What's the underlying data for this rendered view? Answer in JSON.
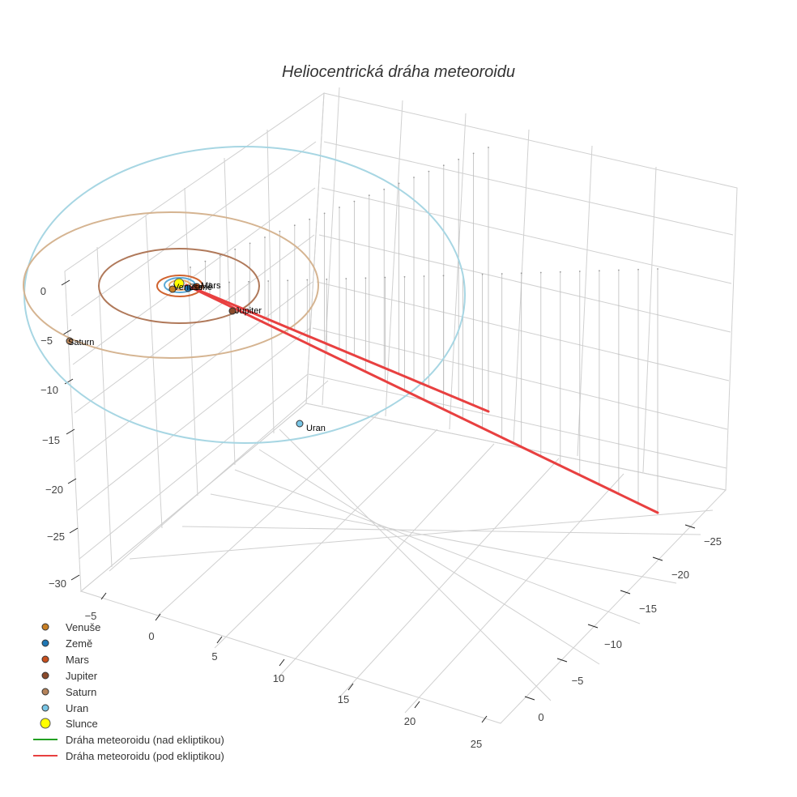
{
  "chart_data": {
    "type": "scatter3d",
    "title": "Heliocentrická dráha meteoroidu",
    "axes": {
      "z_ticks": [
        "0",
        "−5",
        "−10",
        "−15",
        "−20",
        "−25",
        "−30"
      ],
      "x_ticks": [
        "−5",
        "0",
        "5",
        "10",
        "15",
        "20",
        "25"
      ],
      "y_ticks": [
        "−25",
        "−20",
        "−15",
        "−10",
        "−5",
        "0"
      ]
    },
    "orbits": [
      {
        "name": "Venuše",
        "radius_au": 0.72,
        "color": "#e8a866"
      },
      {
        "name": "Země",
        "radius_au": 1.0,
        "color": "#5aa9d6"
      },
      {
        "name": "Mars",
        "radius_au": 1.52,
        "color": "#d0632f"
      },
      {
        "name": "Jupiter",
        "radius_au": 5.2,
        "color": "#b0795a"
      },
      {
        "name": "Saturn",
        "radius_au": 9.54,
        "color": "#d5b491"
      },
      {
        "name": "Uran",
        "radius_au": 19.2,
        "color": "#a7d6e3"
      }
    ],
    "planets": [
      {
        "name": "Venuše",
        "label": "Venuše",
        "color": "#c87f24"
      },
      {
        "name": "Země",
        "label": "Země",
        "color": "#1f77b4"
      },
      {
        "name": "Mars",
        "label": "Mars",
        "color": "#c8501e"
      },
      {
        "name": "Jupiter",
        "label": "Jupiter",
        "color": "#8b4a2b"
      },
      {
        "name": "Saturn",
        "label": "Saturn",
        "color": "#b5835a"
      },
      {
        "name": "Uran",
        "label": "Uran",
        "color": "#79c6e6"
      },
      {
        "name": "Slunce",
        "label": "",
        "color": "#ffff00"
      }
    ],
    "legend": [
      {
        "label": "Venuše",
        "kind": "marker",
        "color": "#c87f24"
      },
      {
        "label": "Země",
        "kind": "marker",
        "color": "#1f77b4"
      },
      {
        "label": "Mars",
        "kind": "marker",
        "color": "#c8501e"
      },
      {
        "label": "Jupiter",
        "kind": "marker",
        "color": "#8b4a2b"
      },
      {
        "label": "Saturn",
        "kind": "marker",
        "color": "#b5835a"
      },
      {
        "label": "Uran",
        "kind": "marker",
        "color": "#79c6e6"
      },
      {
        "label": "Slunce",
        "kind": "sun",
        "color": "#ffff00"
      },
      {
        "label": "Dráha meteoroidu (nad ekliptikou)",
        "kind": "line",
        "color": "#22a022"
      },
      {
        "label": "Dráha meteoroidu (pod ekliptikou)",
        "kind": "line",
        "color": "#e84040"
      }
    ],
    "meteoroid_path": {
      "name": "Dráha meteoroidu (pod ekliptikou)",
      "color": "#e84040"
    },
    "legend_position": "bottom-left"
  }
}
